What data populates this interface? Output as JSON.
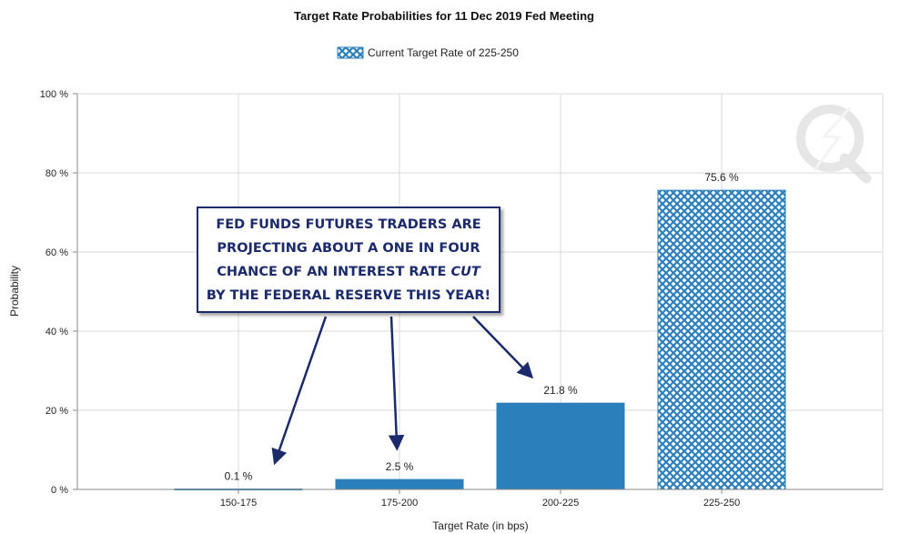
{
  "colors": {
    "bar": "#2b7fbb",
    "hatch_bg": "#ffffff",
    "grid": "#d9d9d9",
    "axis": "#888888",
    "text": "#222222",
    "callout": "#1b2a6b",
    "arrow": "#1b2a6b"
  },
  "chart_data": {
    "type": "bar",
    "title": "Target Rate Probabilities for 11 Dec 2019 Fed Meeting",
    "legend": {
      "label": "Current Target Rate of 225-250",
      "position": "top",
      "style": "cross-hatched"
    },
    "xlabel": "Target Rate (in bps)",
    "ylabel": "Probability",
    "categories": [
      "150-175",
      "175-200",
      "200-225",
      "225-250"
    ],
    "values": [
      0.1,
      2.5,
      21.8,
      75.6
    ],
    "data_labels": [
      "0.1 %",
      "2.5 %",
      "21.8 %",
      "75.6 %"
    ],
    "current_category": "225-250",
    "ylim": [
      0,
      100
    ],
    "yticks": [
      0,
      20,
      40,
      60,
      80,
      100
    ],
    "ytick_labels": [
      "0 %",
      "20 %",
      "40 %",
      "60 %",
      "80 %",
      "100 %"
    ],
    "grid": true
  },
  "annotation": {
    "line1": "FED FUNDS FUTURES TRADERS ARE",
    "line2": "PROJECTING ABOUT A ONE IN FOUR",
    "line3_pre": "CHANCE OF AN INTEREST RATE ",
    "line3_em": "CUT",
    "line4": "BY THE FEDERAL RESERVE THIS YEAR!"
  },
  "watermark_icon": "quandl-q-logo-icon"
}
